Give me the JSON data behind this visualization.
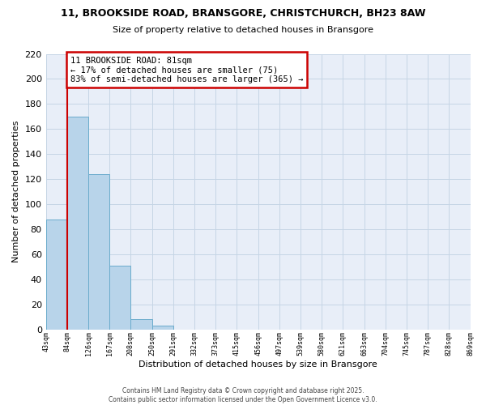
{
  "title": "11, BROOKSIDE ROAD, BRANSGORE, CHRISTCHURCH, BH23 8AW",
  "subtitle": "Size of property relative to detached houses in Bransgore",
  "bar_values": [
    88,
    170,
    124,
    51,
    8,
    3,
    0,
    0,
    0,
    0,
    0,
    0,
    0,
    0,
    0,
    0,
    0,
    0,
    0,
    0
  ],
  "x_labels": [
    "43sqm",
    "84sqm",
    "126sqm",
    "167sqm",
    "208sqm",
    "250sqm",
    "291sqm",
    "332sqm",
    "373sqm",
    "415sqm",
    "456sqm",
    "497sqm",
    "539sqm",
    "580sqm",
    "621sqm",
    "663sqm",
    "704sqm",
    "745sqm",
    "787sqm",
    "828sqm",
    "869sqm"
  ],
  "bar_color": "#b8d4ea",
  "bar_edge_color": "#6aabcc",
  "ylabel": "Number of detached properties",
  "xlabel": "Distribution of detached houses by size in Bransgore",
  "ylim": [
    0,
    220
  ],
  "yticks": [
    0,
    20,
    40,
    60,
    80,
    100,
    120,
    140,
    160,
    180,
    200,
    220
  ],
  "property_line_color": "#cc0000",
  "annotation_border_color": "#cc0000",
  "annotation_box_color": "#ffffff",
  "property_label": "11 BROOKSIDE ROAD: 81sqm",
  "annotation_line1": "← 17% of detached houses are smaller (75)",
  "annotation_line2": "83% of semi-detached houses are larger (365) →",
  "grid_color": "#c5d5e5",
  "background_color": "#e8eef8",
  "footer_line1": "Contains HM Land Registry data © Crown copyright and database right 2025.",
  "footer_line2": "Contains public sector information licensed under the Open Government Licence v3.0."
}
